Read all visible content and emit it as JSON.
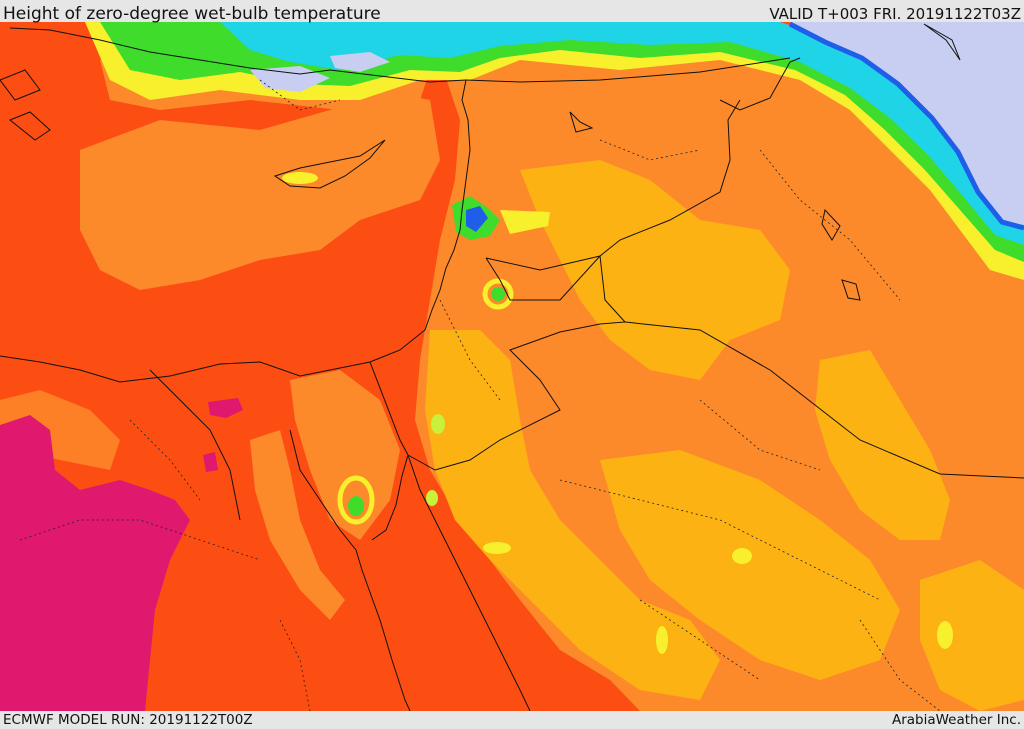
{
  "header": {
    "title": "Height of zero-degree wet-bulb temperature",
    "valid": "VALID T+003 FRI. 20191122T03Z"
  },
  "footer": {
    "model_run": "ECMWF MODEL RUN: 20191122T00Z",
    "credit": "ArabiaWeather Inc."
  },
  "colors": {
    "deep_red_orange": "#fc4e12",
    "orange": "#fd8a2a",
    "light_orange": "#fdb214",
    "yellow": "#f8f02c",
    "yellow_green": "#c9f03a",
    "green": "#3fdc2c",
    "teal": "#20d8a0",
    "cyan": "#1fd4e6",
    "blue": "#1e5ee8",
    "lavender": "#c8cdf2",
    "magenta": "#e0186e",
    "boundary": "#111111"
  }
}
